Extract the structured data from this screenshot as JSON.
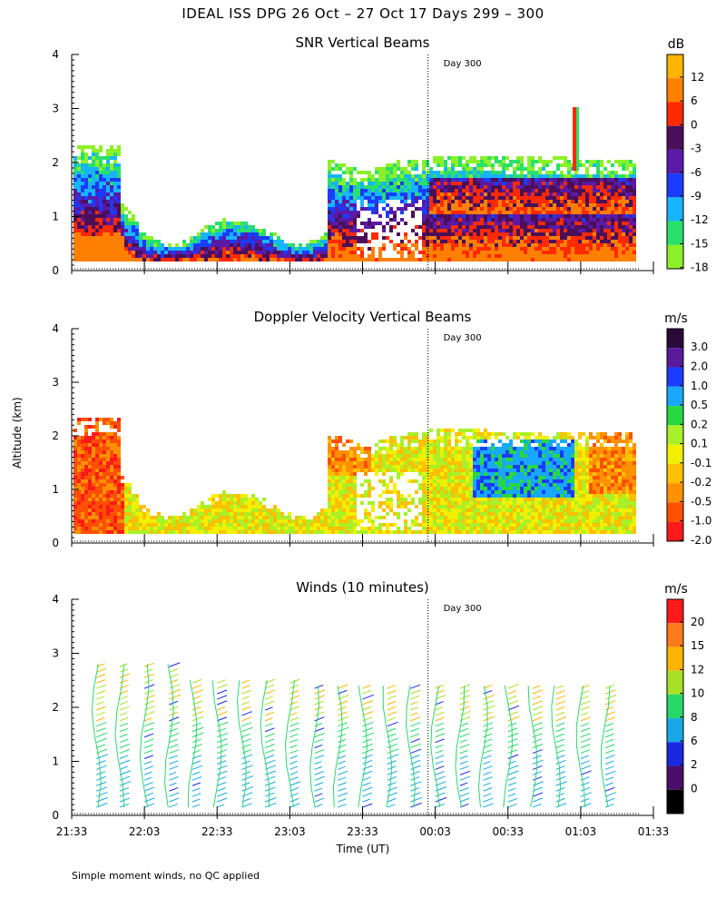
{
  "title": "IDEAL ISS DPG  26 Oct – 27 Oct 17 Days 299 – 300",
  "ylabel": "Altitude (km)",
  "xlabel": "Time (UT)",
  "footnote": "Simple moment winds, no QC applied",
  "day_marker": "Day 300",
  "chart_data": [
    {
      "type": "heatmap",
      "title": "SNR Vertical Beams",
      "ylabel": "Altitude (km)",
      "ylim": [
        0,
        4
      ],
      "yticks": [
        "0",
        "1",
        "2",
        "3",
        "4"
      ],
      "x_range_hours": [
        21.55,
        25.55
      ],
      "day_marker_time": "00:00",
      "colorbar": {
        "unit": "dB",
        "labels": [
          "12",
          "6",
          "0",
          "-3",
          "-6",
          "-9",
          "-12",
          "-15",
          "-18"
        ],
        "colors": [
          "#ffb400",
          "#ff8000",
          "#ff2a00",
          "#4b0f5a",
          "#5a1aa8",
          "#1a3cff",
          "#18b4ff",
          "#28e06a",
          "#8cf028"
        ]
      }
    },
    {
      "type": "heatmap",
      "title": "Doppler Velocity Vertical Beams",
      "ylabel": "Altitude (km)",
      "ylim": [
        0,
        4
      ],
      "yticks": [
        "0",
        "1",
        "2",
        "3",
        "4"
      ],
      "x_range_hours": [
        21.55,
        25.55
      ],
      "day_marker_time": "00:00",
      "colorbar": {
        "unit": "m/s",
        "labels": [
          "3.0",
          "2.0",
          "1.0",
          "0.5",
          "0.2",
          "0.1",
          "-0.1",
          "-0.2",
          "-0.5",
          "-1.0",
          "-2.0"
        ],
        "colors": [
          "#2a0a3a",
          "#5a1a9a",
          "#1a3cff",
          "#18a8ff",
          "#28d840",
          "#a8f028",
          "#f0f000",
          "#ffc000",
          "#ff9000",
          "#ff5000",
          "#ff1a1a"
        ]
      }
    },
    {
      "type": "barbs",
      "title": "Winds (10 minutes)",
      "ylabel": "Altitude (km)",
      "xlabel": "Time (UT)",
      "ylim": [
        0,
        4
      ],
      "yticks": [
        "0",
        "1",
        "2",
        "3",
        "4"
      ],
      "xticks": [
        "21:33",
        "22:03",
        "22:33",
        "23:03",
        "23:33",
        "00:03",
        "00:33",
        "01:03",
        "01:33"
      ],
      "day_marker_time": "00:00",
      "profile_times_hours": [
        21.72,
        21.88,
        22.05,
        22.22,
        22.38,
        22.55,
        22.72,
        22.88,
        23.05,
        23.22,
        23.38,
        23.55,
        23.72,
        23.88,
        24.05,
        24.22,
        24.38,
        24.55,
        24.72,
        24.88,
        25.05,
        25.22
      ],
      "colorbar": {
        "unit": "m/s",
        "labels": [
          "20",
          "15",
          "12",
          "10",
          "8",
          "6",
          "2",
          "0"
        ],
        "colors": [
          "#ff1a1a",
          "#ff7a1a",
          "#ffb400",
          "#a8e028",
          "#28d86a",
          "#18a8e8",
          "#1a28e0",
          "#4b0f6a",
          "#000000"
        ]
      }
    }
  ]
}
